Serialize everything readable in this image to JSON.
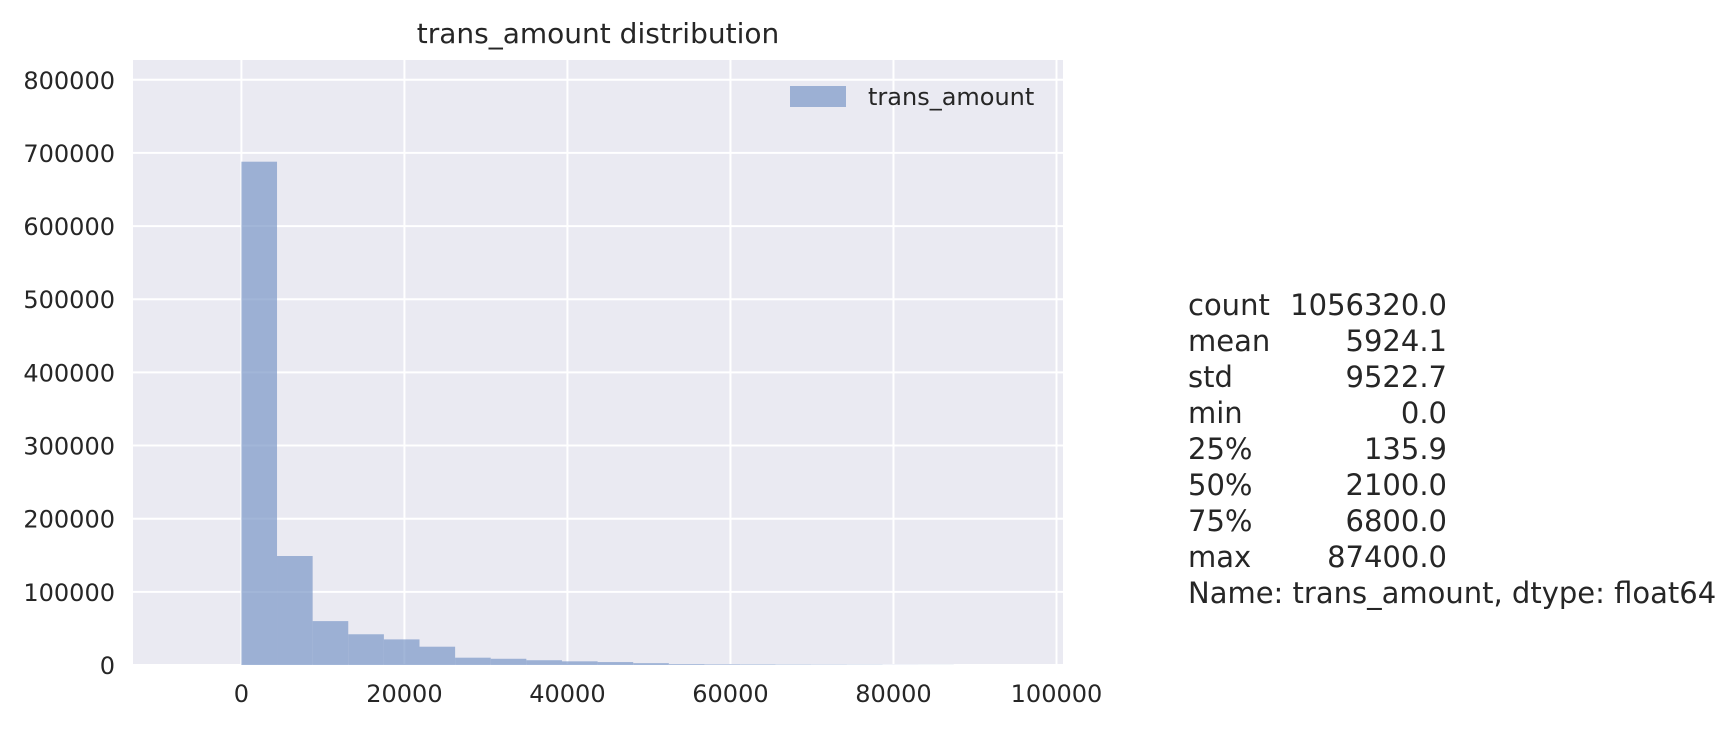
{
  "chart_data": {
    "type": "bar",
    "title": "trans_amount distribution",
    "xlabel": "",
    "ylabel": "",
    "xlim": [
      -13300,
      100800
    ],
    "ylim": [
      0,
      827000
    ],
    "x_ticks": [
      0,
      20000,
      40000,
      60000,
      80000,
      100000
    ],
    "x_tick_labels": [
      "0",
      "20000",
      "40000",
      "60000",
      "80000",
      "100000"
    ],
    "y_ticks": [
      0,
      100000,
      200000,
      300000,
      400000,
      500000,
      600000,
      700000,
      800000
    ],
    "y_tick_labels": [
      "0",
      "100000",
      "200000",
      "300000",
      "400000",
      "500000",
      "600000",
      "700000",
      "800000"
    ],
    "grid": true,
    "legend": {
      "position": "top-right",
      "entries": [
        "trans_amount"
      ]
    },
    "series": [
      {
        "name": "trans_amount",
        "color": "#7b97c7",
        "bin_width": 4370,
        "bin_starts": [
          0,
          4370,
          8740,
          13110,
          17480,
          21850,
          26220,
          30590,
          34960,
          39330,
          43700,
          48070,
          52440,
          56810,
          61180,
          65550,
          69920,
          74290,
          78660,
          83030
        ],
        "values": [
          688000,
          149000,
          60000,
          42000,
          35000,
          25000,
          10000,
          8500,
          6500,
          5000,
          4000,
          2500,
          1200,
          900,
          800,
          600,
          500,
          400,
          200,
          150
        ]
      }
    ]
  },
  "stats_text": {
    "rows": [
      {
        "key": "count",
        "value": "1056320.0"
      },
      {
        "key": "mean",
        "value": "5924.1"
      },
      {
        "key": "std",
        "value": "9522.7"
      },
      {
        "key": "min",
        "value": "0.0"
      },
      {
        "key": "25%",
        "value": "135.9"
      },
      {
        "key": "50%",
        "value": "2100.0"
      },
      {
        "key": "75%",
        "value": "6800.0"
      },
      {
        "key": "max",
        "value": "87400.0"
      }
    ],
    "footer": "Name: trans_amount, dtype: float64"
  }
}
